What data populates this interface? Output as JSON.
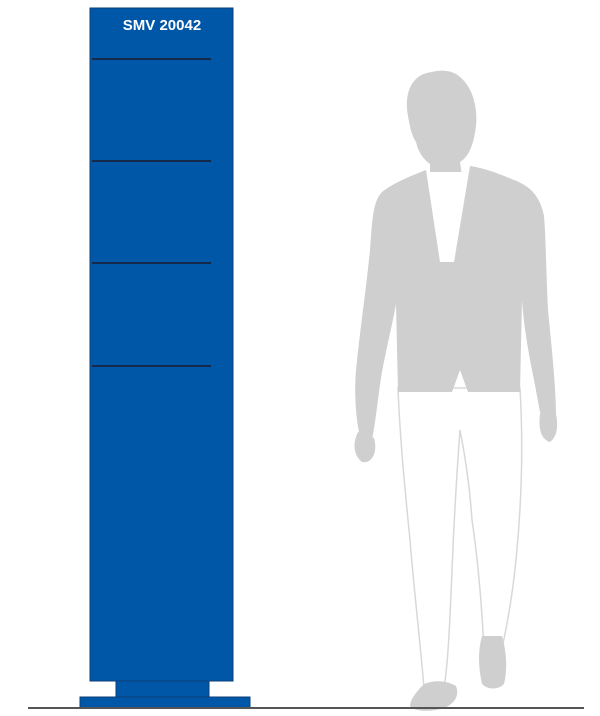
{
  "totem": {
    "model_label": "SMV 20042",
    "color": "#0057A8",
    "divider_color": "#1A1A2E"
  },
  "figure": {
    "silhouette_color": "#CFCFCF",
    "shirt_color": "#FFFFFF"
  },
  "ground": {
    "color": "#555555"
  }
}
